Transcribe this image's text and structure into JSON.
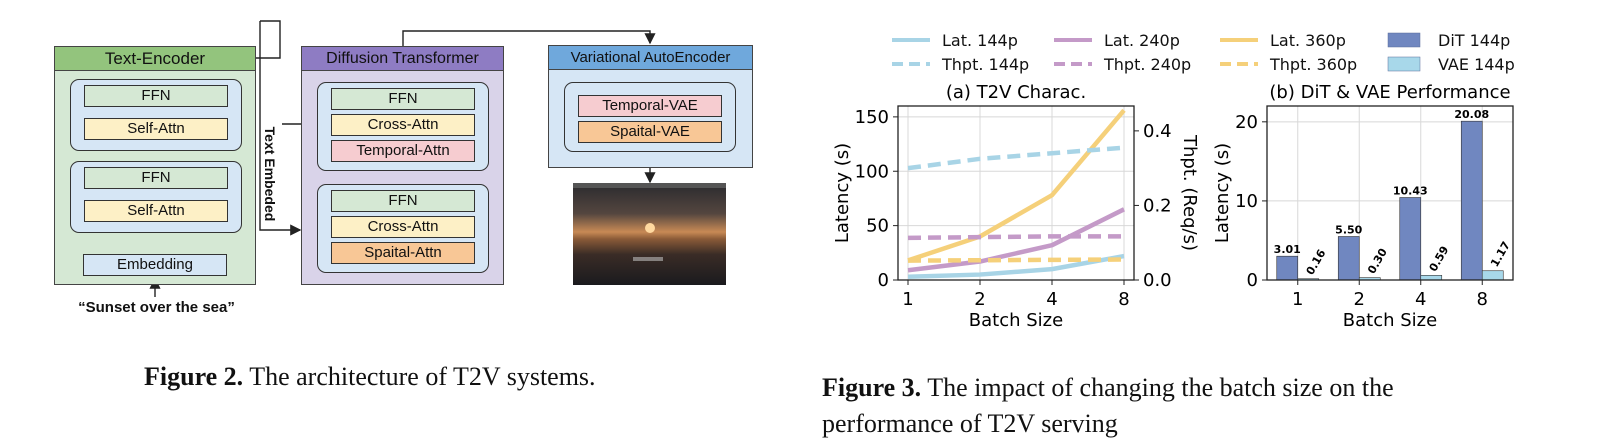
{
  "fig2": {
    "text_encoder": {
      "title": "Text-Encoder",
      "ffn1": "FFN",
      "attn1": "Self-Attn",
      "ffn2": "FFN",
      "attn2": "Self-Attn",
      "embedding": "Embedding"
    },
    "input_prompt": "“Sunset over the sea”",
    "text_embeded": "Text Embeded",
    "dit": {
      "title": "Diffusion Transformer",
      "ffn1": "FFN",
      "cross1": "Cross-Attn",
      "temporal": "Temporal-Attn",
      "ffn2": "FFN",
      "cross2": "Cross-Attn",
      "spatial": "Spaital-Attn"
    },
    "vae": {
      "title": "Variational AutoEncoder",
      "temporal": "Temporal-VAE",
      "spatial": "Spaital-VAE"
    },
    "caption_label": "Figure 2.",
    "caption_text": " The architecture of T2V systems."
  },
  "fig3": {
    "caption_label": "Figure 3.",
    "caption_text": " The impact of changing the batch size on the",
    "caption_line2": "performance of T2V serving",
    "legend": [
      {
        "label": "Lat. 144p",
        "color": "#a8d4e6",
        "style": "solid"
      },
      {
        "label": "Lat. 240p",
        "color": "#c49ac8",
        "style": "solid"
      },
      {
        "label": "Lat. 360p",
        "color": "#f5d07a",
        "style": "solid"
      },
      {
        "label": "DiT 144p",
        "color": "#7087c0",
        "style": "box"
      },
      {
        "label": "Thpt. 144p",
        "color": "#a8d4e6",
        "style": "dashed"
      },
      {
        "label": "Thpt. 240p",
        "color": "#c49ac8",
        "style": "dashed"
      },
      {
        "label": "Thpt. 360p",
        "color": "#f5d07a",
        "style": "dashed"
      },
      {
        "label": "VAE 144p",
        "color": "#a8d8ea",
        "style": "box"
      }
    ]
  },
  "chart_data": [
    {
      "type": "line",
      "title": "(a) T2V Charac.",
      "xlabel": "Batch Size",
      "ylabel": "Latency (s)",
      "y2label": "Thpt. (Req/s)",
      "categories": [
        "1",
        "2",
        "4",
        "8"
      ],
      "ylim": [
        0,
        160
      ],
      "yticks": [
        0,
        50,
        100,
        150
      ],
      "y2lim": [
        0,
        0.4667
      ],
      "y2ticks": [
        0.0,
        0.2,
        0.4
      ],
      "y2ticklabels": [
        "0.0",
        "0.2",
        "0.4"
      ],
      "grid": true,
      "series": [
        {
          "name": "Lat. 144p",
          "axis": "left",
          "color": "#a8d4e6",
          "dash": false,
          "values": [
            3,
            5,
            10,
            22
          ]
        },
        {
          "name": "Lat. 240p",
          "axis": "left",
          "color": "#c49ac8",
          "dash": false,
          "values": [
            9,
            17,
            32,
            65
          ]
        },
        {
          "name": "Lat. 360p",
          "axis": "left",
          "color": "#f5d07a",
          "dash": false,
          "values": [
            18,
            40,
            78,
            156
          ]
        },
        {
          "name": "Thpt. 144p",
          "axis": "right",
          "color": "#a8d4e6",
          "dash": true,
          "values": [
            0.3,
            0.325,
            0.34,
            0.355
          ]
        },
        {
          "name": "Thpt. 240p",
          "axis": "right",
          "color": "#c49ac8",
          "dash": true,
          "values": [
            0.113,
            0.115,
            0.117,
            0.117
          ]
        },
        {
          "name": "Thpt. 360p",
          "axis": "right",
          "color": "#f5d07a",
          "dash": true,
          "values": [
            0.052,
            0.053,
            0.054,
            0.055
          ]
        }
      ]
    },
    {
      "type": "bar",
      "title": "(b) DiT & VAE Performance",
      "xlabel": "Batch Size",
      "ylabel": "Latency (s)",
      "categories": [
        "1",
        "2",
        "4",
        "8"
      ],
      "ylim": [
        0,
        22
      ],
      "yticks": [
        0,
        10,
        20
      ],
      "grid": true,
      "series": [
        {
          "name": "DiT 144p",
          "color": "#7087c0",
          "values": [
            3.01,
            5.5,
            10.43,
            20.08
          ],
          "labels": [
            "3.01",
            "5.50",
            "10.43",
            "20.08"
          ]
        },
        {
          "name": "VAE 144p",
          "color": "#a8d8ea",
          "values": [
            0.16,
            0.3,
            0.59,
            1.17
          ],
          "labels": [
            "0.16",
            "0.30",
            "0.59",
            "1.17"
          ]
        }
      ]
    }
  ]
}
